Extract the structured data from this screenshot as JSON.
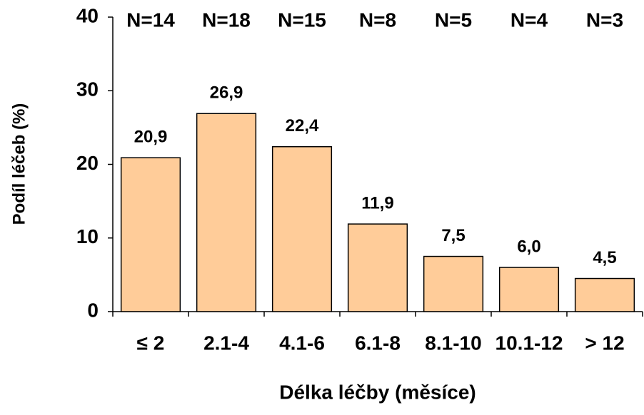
{
  "chart_data": {
    "type": "bar",
    "x_label": "Délka léčby (měsíce)",
    "y_label": "Podíl léčeb (%)",
    "categories": [
      "≤ 2",
      "2.1-4",
      "4.1-6",
      "6.1-8",
      "8.1-10",
      "10.1-12",
      "> 12"
    ],
    "values": [
      20.9,
      26.9,
      22.4,
      11.9,
      7.5,
      6.0,
      4.5
    ],
    "value_labels": [
      "20,9",
      "26,9",
      "22,4",
      "11,9",
      "7,5",
      "6,0",
      "4,5"
    ],
    "annotations": [
      "N=14",
      "N=18",
      "N=15",
      "N=8",
      "N=5",
      "N=4",
      "N=3"
    ],
    "color": "#ffcc99",
    "ylim": [
      0,
      40
    ],
    "yticks": [
      0,
      10,
      20,
      30,
      40
    ],
    "grid": false
  }
}
